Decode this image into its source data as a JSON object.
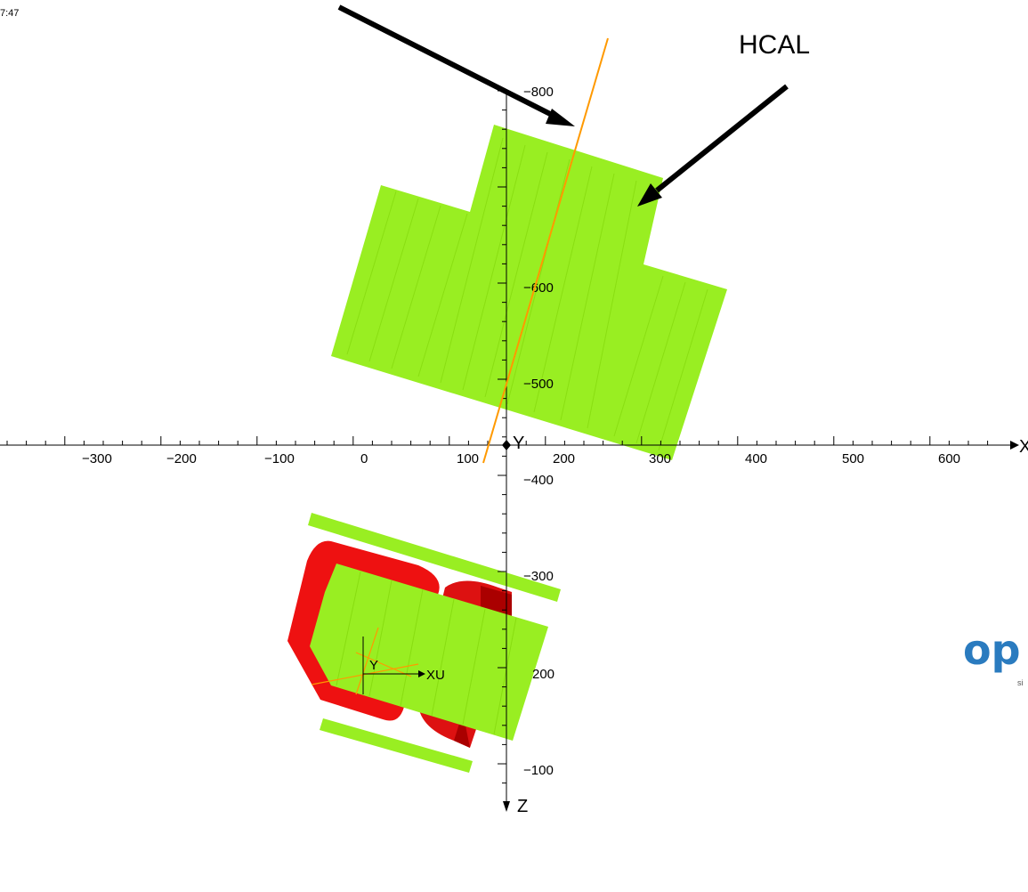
{
  "header": {
    "clock_text": "7:47"
  },
  "annotation": {
    "label": "HCAL"
  },
  "axes": {
    "x_name": "X",
    "y_name": "Y",
    "z_name": "Z",
    "x_ticks": [
      "−300",
      "−200",
      "−100",
      "0",
      "100",
      "200",
      "300",
      "400",
      "500",
      "600"
    ],
    "v_ticks": [
      "−800",
      "−600",
      "−500",
      "−400",
      "−300",
      "200",
      "−100"
    ]
  },
  "mini_axes": {
    "y_label": "Y",
    "x_label": "XU"
  },
  "logo": {
    "text": "op",
    "sub": "si"
  },
  "colors": {
    "detector_green": "#99ee22",
    "magnet_red": "#ee1111",
    "magnet_dark": "#aa0000",
    "track_orange": "#ff9900",
    "logo_blue": "#2a7bbf"
  }
}
